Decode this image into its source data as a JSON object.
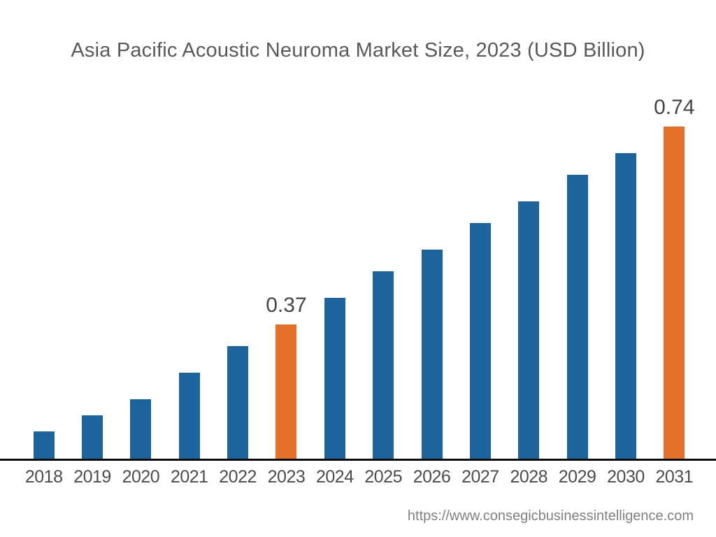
{
  "footer": {
    "source_url": "https://www.consegicbusinessintelligence.com"
  },
  "chart_data": {
    "type": "bar",
    "title": "Asia Pacific Acoustic Neuroma Market  Size, 2023 (USD Billion)",
    "unit": "USD Billion",
    "categories": [
      "2018",
      "2019",
      "2020",
      "2021",
      "2022",
      "2023",
      "2024",
      "2025",
      "2026",
      "2027",
      "2028",
      "2029",
      "2030",
      "2031"
    ],
    "values": [
      0.17,
      0.2,
      0.23,
      0.28,
      0.33,
      0.37,
      0.42,
      0.47,
      0.51,
      0.56,
      0.6,
      0.65,
      0.69,
      0.74
    ],
    "data_labels": {
      "2023": "0.37",
      "2031": "0.74"
    },
    "highlighted_categories": [
      "2023",
      "2031"
    ],
    "colors": {
      "bar": "#1B649D",
      "highlight": "#E4702A",
      "axis": "#0E0E0E"
    },
    "ylim": [
      0.119,
      0.74
    ],
    "value_axis_visible": false,
    "grid": false,
    "legend": false,
    "xlabel": "",
    "ylabel": ""
  }
}
